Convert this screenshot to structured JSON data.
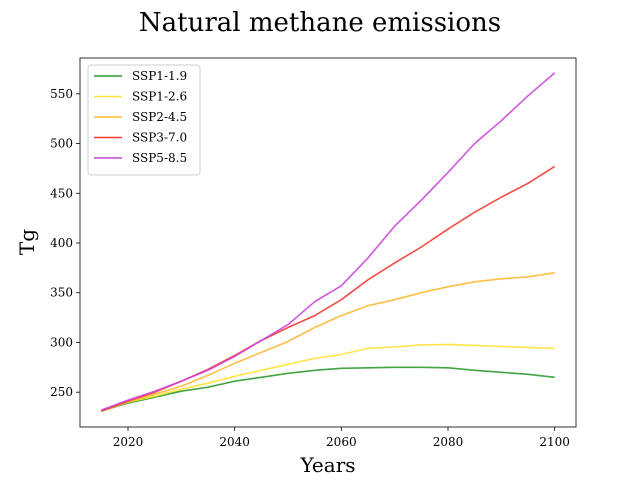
{
  "chart_data": {
    "type": "line",
    "title": "Natural methane emissions",
    "xlabel": "Years",
    "ylabel": "Tg",
    "xlim": [
      2011,
      2104
    ],
    "ylim": [
      215,
      586
    ],
    "xticks": [
      2020,
      2040,
      2060,
      2080,
      2100
    ],
    "yticks": [
      250,
      300,
      350,
      400,
      450,
      500,
      550
    ],
    "grid": false,
    "legend_position": "top-left",
    "x": [
      2015,
      2020,
      2025,
      2030,
      2035,
      2040,
      2045,
      2050,
      2055,
      2060,
      2065,
      2070,
      2075,
      2080,
      2085,
      2090,
      2095,
      2100
    ],
    "series": [
      {
        "name": "SSP1-1.9",
        "color": "#2e9b2e",
        "values": [
          231,
          239,
          245,
          251,
          255,
          261,
          265,
          269,
          272,
          274,
          274.5,
          275,
          275,
          274.5,
          272,
          270,
          268,
          265
        ]
      },
      {
        "name": "SSP1-2.6",
        "color": "#ffe135",
        "values": [
          231,
          240,
          246,
          253,
          259,
          266,
          272,
          278,
          284,
          288,
          294,
          295.5,
          297.5,
          298,
          297,
          296,
          295,
          294
        ]
      },
      {
        "name": "SSP2-4.5",
        "color": "#ffb733",
        "values": [
          231,
          240,
          248,
          256,
          267,
          279,
          290,
          301,
          315,
          327,
          337,
          343,
          350,
          356,
          361,
          364,
          366,
          370
        ]
      },
      {
        "name": "SSP3-7.0",
        "color": "#f03a2d",
        "values": [
          231,
          241,
          250,
          261,
          273,
          287,
          302,
          315,
          327,
          343,
          363,
          380,
          396,
          414,
          431,
          446,
          460,
          477
        ]
      },
      {
        "name": "SSP5-8.5",
        "color": "#cc44dd",
        "values": [
          232,
          242,
          251,
          261,
          272,
          286,
          302,
          318,
          341,
          357,
          385,
          417,
          443,
          471,
          500,
          523,
          548,
          571
        ]
      }
    ]
  }
}
